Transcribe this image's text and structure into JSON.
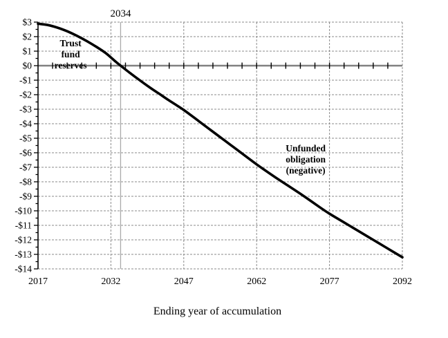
{
  "chart_data": {
    "type": "line",
    "title": "",
    "xlabel": "Ending year of accumulation",
    "ylabel": "",
    "xlim": [
      2017,
      2092
    ],
    "ylim": [
      -14,
      3
    ],
    "x_tick_years": [
      2017,
      2032,
      2047,
      2062,
      2077,
      2092
    ],
    "x_tick_labels": [
      "2017",
      "2032",
      "2047",
      "2062",
      "2077",
      "2092"
    ],
    "x_minor_tick_step_years": 3,
    "y_major_tick_step": 1,
    "y_minor_tick_step": 0.5,
    "y_tick_labels": [
      "$3",
      "$2",
      "$1",
      "$0",
      "-$1",
      "-$2",
      "-$3",
      "-$4",
      "-$5",
      "-$6",
      "-$7",
      "-$8",
      "-$9",
      "-$10",
      "-$11",
      "-$12",
      "-$13",
      "-$14"
    ],
    "grid": "horizontal dashed at every $1; vertical dashed at labeled years; zero line solid gray",
    "legend": "none",
    "series": [
      {
        "name": "trust-fund-reserves-then-unfunded-obligation",
        "x": [
          2017,
          2019,
          2021,
          2023,
          2025,
          2027,
          2029,
          2031,
          2033,
          2034,
          2036,
          2038,
          2040,
          2042,
          2044,
          2047,
          2050,
          2052,
          2055,
          2057,
          2060,
          2062,
          2065,
          2067,
          2070,
          2072,
          2075,
          2077,
          2080,
          2082,
          2085,
          2087,
          2090,
          2092
        ],
        "y": [
          2.89,
          2.8,
          2.62,
          2.37,
          2.06,
          1.7,
          1.3,
          0.85,
          0.27,
          0.0,
          -0.52,
          -1.02,
          -1.5,
          -1.95,
          -2.4,
          -3.05,
          -3.8,
          -4.3,
          -5.05,
          -5.55,
          -6.3,
          -6.8,
          -7.5,
          -7.95,
          -8.6,
          -9.05,
          -9.75,
          -10.2,
          -10.8,
          -11.2,
          -11.8,
          -12.2,
          -12.8,
          -13.2
        ]
      }
    ],
    "annotations": [
      {
        "name": "depletion-year-callout",
        "text": "2034",
        "x": 2034,
        "vertical_line": true
      },
      {
        "name": "trust-fund-reserves-label",
        "lines": [
          "Trust",
          "fund",
          "reserves"
        ],
        "x": 2023.7,
        "y": 0.57
      },
      {
        "name": "unfunded-obligation-label",
        "lines": [
          "Unfunded",
          "obligation",
          "(negative)"
        ],
        "x": 2072.1,
        "y": -6.67
      }
    ],
    "colors": {
      "series_line": "#000000",
      "zero_axis": "#808080",
      "gridline": "#8a8a8a",
      "depletion_line": "#aaaaaa",
      "axis": "#000000",
      "background": "#ffffff",
      "text": "#000000"
    }
  }
}
